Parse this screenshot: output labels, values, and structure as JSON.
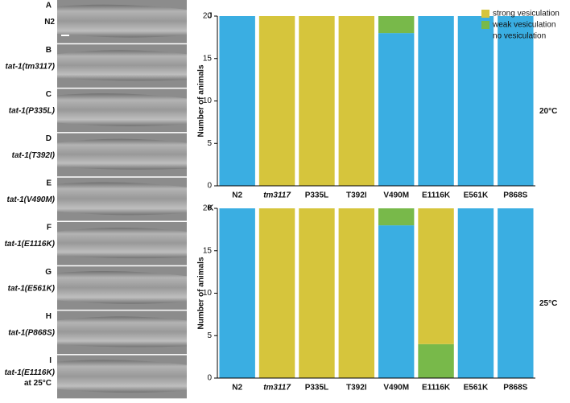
{
  "panels": [
    {
      "letter": "A",
      "label": "N2"
    },
    {
      "letter": "B",
      "label": "tat-1(tm3117)"
    },
    {
      "letter": "C",
      "label": "tat-1(P335L)"
    },
    {
      "letter": "D",
      "label": "tat-1(T392I)"
    },
    {
      "letter": "E",
      "label": "tat-1(V490M)"
    },
    {
      "letter": "F",
      "label": "tat-1(E1116K)"
    },
    {
      "letter": "G",
      "label": "tat-1(E561K)"
    },
    {
      "letter": "H",
      "label": "tat-1(P868S)"
    },
    {
      "letter": "I",
      "label": "tat-1(E1116K)",
      "sublabel": "at 25°C"
    }
  ],
  "chart_data": [
    {
      "type": "stacked_bar",
      "panel_letter": "J",
      "annotation": "20°C",
      "y_label": "Number of animals",
      "categories": [
        "N2",
        "tm3117",
        "P335L",
        "T392I",
        "V490M",
        "E1116K",
        "E561K",
        "P868S"
      ],
      "series": [
        {
          "name": "strong vesiculation",
          "color": "#d6c53c",
          "values": [
            0,
            20,
            20,
            20,
            0,
            0,
            0,
            0
          ]
        },
        {
          "name": "weak vesiculation",
          "color": "#78b94a",
          "values": [
            0,
            0,
            0,
            0,
            2,
            0,
            0,
            0
          ]
        },
        {
          "name": "no vesiculation",
          "color": "#3aaee2",
          "values": [
            20,
            0,
            0,
            0,
            18,
            20,
            20,
            20
          ]
        }
      ],
      "ylim": [
        0,
        20
      ],
      "yticks": [
        0,
        5,
        10,
        15,
        20
      ],
      "legend": "upper right"
    },
    {
      "type": "stacked_bar",
      "panel_letter": "K",
      "annotation": "25°C",
      "y_label": "Number of animals",
      "categories": [
        "N2",
        "tm3117",
        "P335L",
        "T392I",
        "V490M",
        "E1116K",
        "E561K",
        "P868S"
      ],
      "series": [
        {
          "name": "strong vesiculation",
          "color": "#d6c53c",
          "values": [
            0,
            20,
            20,
            20,
            0,
            16,
            0,
            0
          ]
        },
        {
          "name": "weak vesiculation",
          "color": "#78b94a",
          "values": [
            0,
            0,
            0,
            0,
            2,
            4,
            0,
            0
          ]
        },
        {
          "name": "no vesiculation",
          "color": "#3aaee2",
          "values": [
            20,
            0,
            0,
            0,
            18,
            0,
            20,
            20
          ]
        }
      ],
      "ylim": [
        0,
        20
      ],
      "yticks": [
        0,
        5,
        10,
        15,
        20
      ]
    }
  ]
}
